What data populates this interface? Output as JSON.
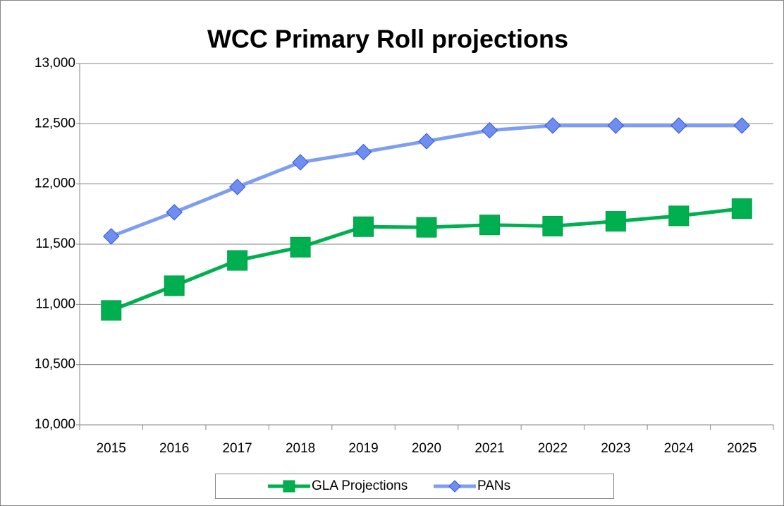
{
  "chart_data": {
    "type": "line",
    "title": "WCC Primary Roll projections",
    "categories": [
      "2015",
      "2016",
      "2017",
      "2018",
      "2019",
      "2020",
      "2021",
      "2022",
      "2023",
      "2024",
      "2025"
    ],
    "series": [
      {
        "name": "GLA Projections",
        "color": "#00b050",
        "marker": "square",
        "values": [
          10950,
          11155,
          11365,
          11475,
          11645,
          11640,
          11660,
          11650,
          11690,
          11735,
          11795
        ]
      },
      {
        "name": "PANs",
        "color": "#7f9ef0",
        "marker": "diamond",
        "values": [
          11565,
          11765,
          11975,
          12180,
          12265,
          12355,
          12445,
          12485,
          12485,
          12485,
          12485
        ]
      }
    ],
    "ylim": [
      10000,
      13000
    ],
    "yticks": [
      {
        "value": 10000,
        "label": "10,000"
      },
      {
        "value": 10500,
        "label": "10,500"
      },
      {
        "value": 11000,
        "label": "11,000"
      },
      {
        "value": 11500,
        "label": "11,500"
      },
      {
        "value": 12000,
        "label": "12,000"
      },
      {
        "value": 12500,
        "label": "12,500"
      },
      {
        "value": 13000,
        "label": "13,000"
      }
    ],
    "grid": true,
    "legend": "bottom"
  }
}
